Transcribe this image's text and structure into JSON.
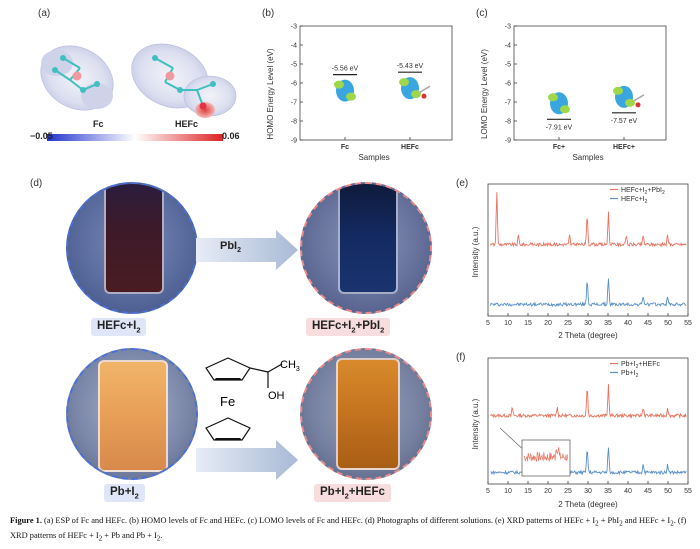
{
  "panels": {
    "a": "(a)",
    "b": "(b)",
    "c": "(c)",
    "d": "(d)",
    "e": "(e)",
    "f": "(f)"
  },
  "panel_a": {
    "label_fc": "Fc",
    "label_hefc": "HEFc",
    "scale_min": "−0.05",
    "scale_max": "0.06",
    "colors": {
      "low": "#2233cc",
      "mid": "#ffffff",
      "high": "#dd2222"
    }
  },
  "panel_b": {
    "ylabel": "HOMO Energy Level (eV)",
    "xlabel": "Samples",
    "ticks": [
      "-3",
      "-4",
      "-5",
      "-6",
      "-7",
      "-8",
      "-9"
    ],
    "categories": [
      "Fc",
      "HEFc"
    ],
    "value_labels": [
      "-5.56 eV",
      "-5.43 eV"
    ]
  },
  "panel_c": {
    "ylabel": "LOMO Energy Level (eV)",
    "xlabel": "Samples",
    "ticks": [
      "-3",
      "-4",
      "-5",
      "-6",
      "-7",
      "-8",
      "-9"
    ],
    "categories": [
      "Fc+",
      "HEFc+"
    ],
    "value_labels": [
      "-7.91 eV",
      "-7.57 eV"
    ]
  },
  "panel_d": {
    "arrow_label_base": "PbI",
    "arrow_label_sub": "2",
    "tag1": {
      "main": "HEFc+I",
      "sub": "2"
    },
    "tag2": {
      "main": "HEFc+I",
      "sub1": "2",
      "mid": "+PbI",
      "sub2": "2"
    },
    "tag3": {
      "main": "Pb+I",
      "sub": "2"
    },
    "tag4": {
      "main": "Pb+I",
      "sub": "2",
      "rest": "+HEFc"
    },
    "molecule": {
      "fe": "Fe",
      "oh": "OH",
      "ch3": "CH",
      "ch3_sub": "3"
    }
  },
  "chart_data": [
    {
      "type": "line",
      "panel": "b",
      "title": "",
      "xlabel": "Samples",
      "ylabel": "HOMO Energy Level (eV)",
      "ylim": [
        -9,
        -3
      ],
      "categories": [
        "Fc",
        "HEFc"
      ],
      "values": [
        -5.56,
        -5.43
      ]
    },
    {
      "type": "line",
      "panel": "c",
      "title": "",
      "xlabel": "Samples",
      "ylabel": "LOMO Energy Level (eV)",
      "ylim": [
        -9,
        -3
      ],
      "categories": [
        "Fc+",
        "HEFc+"
      ],
      "values": [
        -7.91,
        -7.57
      ]
    },
    {
      "type": "line",
      "panel": "e",
      "xlabel": "2 Theta (degree)",
      "ylabel": "Intensity (a.u.)",
      "xlim": [
        5,
        55
      ],
      "xticks": [
        5,
        10,
        15,
        20,
        25,
        30,
        35,
        40,
        45,
        50,
        55
      ],
      "series": [
        {
          "name": "HEFc+I2+PbI2",
          "label_main": "HEFc+I",
          "label_sub": "2",
          "label_mid": "+PbI",
          "label_sub2": "2",
          "color": "#e8735f",
          "peaks": [
            7.2,
            12.6,
            25.4,
            29.8,
            35.1,
            39.6,
            43.8,
            49.9
          ]
        },
        {
          "name": "HEFc+I2",
          "label_main": "HEFc+I",
          "label_sub": "2",
          "label_mid": "",
          "label_sub2": "",
          "color": "#5b8fc7",
          "peaks": [
            29.8,
            35.1,
            43.8,
            49.9
          ]
        }
      ]
    },
    {
      "type": "line",
      "panel": "f",
      "xlabel": "2 Theta (degree)",
      "ylabel": "Intensity (a.u.)",
      "xlim": [
        5,
        55
      ],
      "xticks": [
        5,
        10,
        15,
        20,
        25,
        30,
        35,
        40,
        45,
        50,
        55
      ],
      "series": [
        {
          "name": "Pb+I2+HEFc",
          "label_main": "Pb+I",
          "label_sub": "2",
          "label_mid": "+HEFc",
          "label_sub2": "",
          "color": "#e8735f",
          "peaks": [
            11.1,
            22.3,
            29.8,
            35.1,
            43.8,
            49.9
          ]
        },
        {
          "name": "Pb+I2",
          "label_main": "Pb+I",
          "label_sub": "2",
          "label_mid": "",
          "label_sub2": "",
          "color": "#5b8fc7",
          "peaks": [
            29.8,
            35.1,
            43.8,
            49.9
          ]
        }
      ]
    }
  ],
  "caption": {
    "figure": "Figure 1.",
    "text": " (a) ESP of Fc and HEFc. (b) HOMO levels of Fc and HEFc. (c) LOMO levels of Fc and HEFc. (d) Photographs of different solutions. (e) XRD patterns of HEFc + I",
    "s1": "2",
    "t2": " + PbI",
    "s2": "2",
    "t3": " and HEFc + I",
    "s3": "2",
    "t4": ". (f) XRD patterns of HEFc + I",
    "s4": "2",
    "t5": " + Pb and Pb + I",
    "s5": "2",
    "t6": "."
  }
}
